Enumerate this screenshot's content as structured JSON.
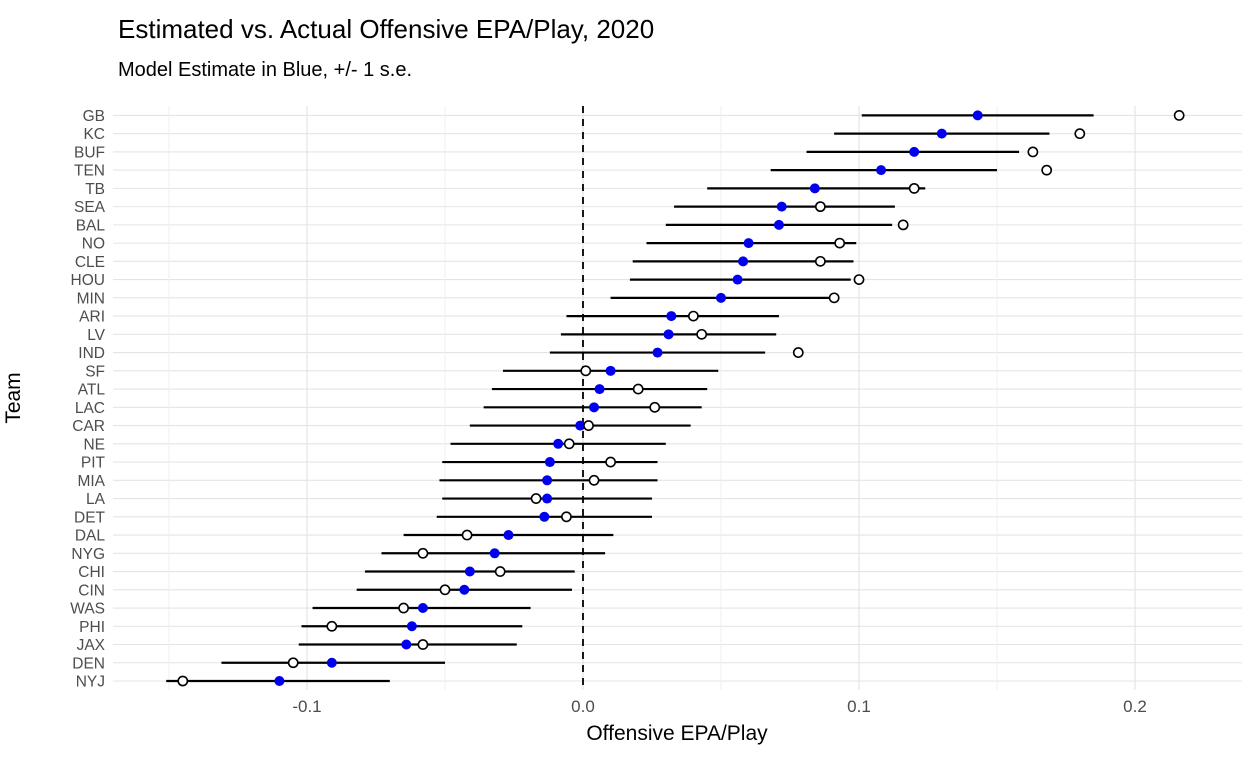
{
  "chart_data": {
    "type": "scatter",
    "variant": "horizontal-dotplot-with-errorbars",
    "title": "Estimated vs. Actual Offensive EPA/Play, 2020",
    "subtitle": "Model Estimate in Blue, +/- 1 s.e.",
    "xlabel": "Offensive EPA/Play",
    "ylabel": "Team",
    "xlim": [
      -0.17,
      0.239
    ],
    "x_ticks": {
      "major": [
        -0.1,
        0.0,
        0.1,
        0.2
      ],
      "labels": [
        "-0.1",
        "0.0",
        "0.1",
        "0.2"
      ],
      "minor": [
        -0.15,
        -0.05,
        0.05,
        0.15
      ]
    },
    "reference_line_x": 0.0,
    "grid": true,
    "legend_position": "none",
    "series_legend": [
      {
        "name": "Model Estimate",
        "marker": "filled-circle",
        "color": "#0000EE"
      },
      {
        "name": "Actual",
        "marker": "open-circle",
        "color": "#000000"
      }
    ],
    "teams": [
      {
        "team": "GB",
        "estimate": 0.143,
        "se_low": 0.101,
        "se_high": 0.185,
        "actual": 0.216
      },
      {
        "team": "KC",
        "estimate": 0.13,
        "se_low": 0.091,
        "se_high": 0.169,
        "actual": 0.18
      },
      {
        "team": "BUF",
        "estimate": 0.12,
        "se_low": 0.081,
        "se_high": 0.158,
        "actual": 0.163
      },
      {
        "team": "TEN",
        "estimate": 0.108,
        "se_low": 0.068,
        "se_high": 0.15,
        "actual": 0.168
      },
      {
        "team": "TB",
        "estimate": 0.084,
        "se_low": 0.045,
        "se_high": 0.124,
        "actual": 0.12
      },
      {
        "team": "SEA",
        "estimate": 0.072,
        "se_low": 0.033,
        "se_high": 0.113,
        "actual": 0.086
      },
      {
        "team": "BAL",
        "estimate": 0.071,
        "se_low": 0.03,
        "se_high": 0.112,
        "actual": 0.116
      },
      {
        "team": "NO",
        "estimate": 0.06,
        "se_low": 0.023,
        "se_high": 0.099,
        "actual": 0.093
      },
      {
        "team": "CLE",
        "estimate": 0.058,
        "se_low": 0.018,
        "se_high": 0.098,
        "actual": 0.086
      },
      {
        "team": "HOU",
        "estimate": 0.056,
        "se_low": 0.017,
        "se_high": 0.097,
        "actual": 0.1
      },
      {
        "team": "MIN",
        "estimate": 0.05,
        "se_low": 0.01,
        "se_high": 0.09,
        "actual": 0.091
      },
      {
        "team": "ARI",
        "estimate": 0.032,
        "se_low": -0.006,
        "se_high": 0.071,
        "actual": 0.04
      },
      {
        "team": "LV",
        "estimate": 0.031,
        "se_low": -0.008,
        "se_high": 0.07,
        "actual": 0.043
      },
      {
        "team": "IND",
        "estimate": 0.027,
        "se_low": -0.012,
        "se_high": 0.066,
        "actual": 0.078
      },
      {
        "team": "SF",
        "estimate": 0.01,
        "se_low": -0.029,
        "se_high": 0.049,
        "actual": 0.001
      },
      {
        "team": "ATL",
        "estimate": 0.006,
        "se_low": -0.033,
        "se_high": 0.045,
        "actual": 0.02
      },
      {
        "team": "LAC",
        "estimate": 0.004,
        "se_low": -0.036,
        "se_high": 0.043,
        "actual": 0.026
      },
      {
        "team": "CAR",
        "estimate": -0.001,
        "se_low": -0.041,
        "se_high": 0.039,
        "actual": 0.002
      },
      {
        "team": "NE",
        "estimate": -0.009,
        "se_low": -0.048,
        "se_high": 0.03,
        "actual": -0.005
      },
      {
        "team": "PIT",
        "estimate": -0.012,
        "se_low": -0.051,
        "se_high": 0.027,
        "actual": 0.01
      },
      {
        "team": "MIA",
        "estimate": -0.013,
        "se_low": -0.052,
        "se_high": 0.027,
        "actual": 0.004
      },
      {
        "team": "LA",
        "estimate": -0.013,
        "se_low": -0.051,
        "se_high": 0.025,
        "actual": -0.017
      },
      {
        "team": "DET",
        "estimate": -0.014,
        "se_low": -0.053,
        "se_high": 0.025,
        "actual": -0.006
      },
      {
        "team": "DAL",
        "estimate": -0.027,
        "se_low": -0.065,
        "se_high": 0.011,
        "actual": -0.042
      },
      {
        "team": "NYG",
        "estimate": -0.032,
        "se_low": -0.073,
        "se_high": 0.008,
        "actual": -0.058
      },
      {
        "team": "CHI",
        "estimate": -0.041,
        "se_low": -0.079,
        "se_high": -0.003,
        "actual": -0.03
      },
      {
        "team": "CIN",
        "estimate": -0.043,
        "se_low": -0.082,
        "se_high": -0.004,
        "actual": -0.05
      },
      {
        "team": "WAS",
        "estimate": -0.058,
        "se_low": -0.098,
        "se_high": -0.019,
        "actual": -0.065
      },
      {
        "team": "PHI",
        "estimate": -0.062,
        "se_low": -0.102,
        "se_high": -0.022,
        "actual": -0.091
      },
      {
        "team": "JAX",
        "estimate": -0.064,
        "se_low": -0.103,
        "se_high": -0.024,
        "actual": -0.058
      },
      {
        "team": "DEN",
        "estimate": -0.091,
        "se_low": -0.131,
        "se_high": -0.05,
        "actual": -0.105
      },
      {
        "team": "NYJ",
        "estimate": -0.11,
        "se_low": -0.151,
        "se_high": -0.07,
        "actual": -0.145
      }
    ]
  },
  "colors": {
    "background": "#FFFFFF",
    "estimate_point": "#0000EE",
    "actual_point_stroke": "#000000",
    "actual_point_fill": "#FFFFFF",
    "errorbar": "#000000",
    "reference_line": "#000000",
    "grid_major": "#E4E4E4",
    "grid_minor": "#EFEFEF",
    "axis_text": "#4D4D4D",
    "title_text": "#000000"
  }
}
